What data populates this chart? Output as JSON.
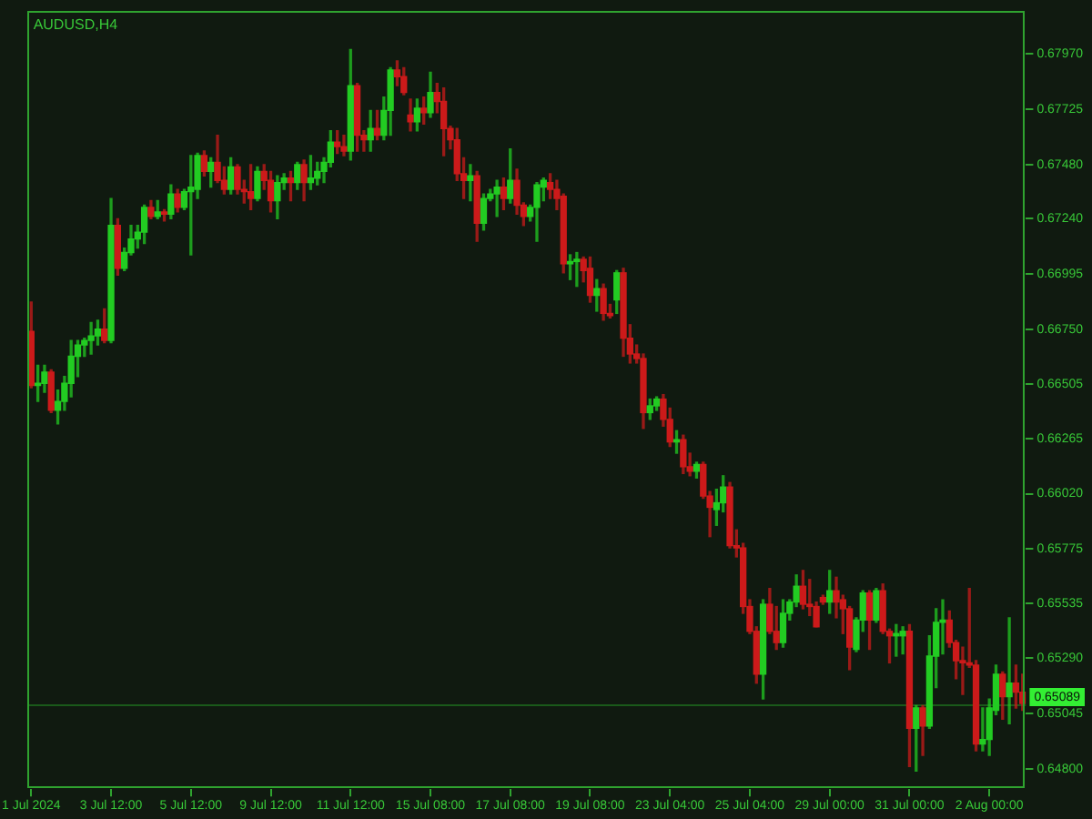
{
  "chart_data": {
    "type": "candlestick",
    "title": "AUDUSD,H4",
    "categories": [
      "1 Jul 2024",
      null,
      null,
      null,
      null,
      null,
      null,
      null,
      null,
      null,
      null,
      null,
      "3 Jul 12:00",
      null,
      null,
      null,
      null,
      null,
      null,
      null,
      null,
      null,
      null,
      null,
      "5 Jul 12:00",
      null,
      null,
      null,
      null,
      null,
      null,
      null,
      null,
      null,
      null,
      null,
      "9 Jul 12:00",
      null,
      null,
      null,
      null,
      null,
      null,
      null,
      null,
      null,
      null,
      null,
      "11 Jul 12:00",
      null,
      null,
      null,
      null,
      null,
      null,
      null,
      null,
      null,
      null,
      null,
      "15 Jul 08:00",
      null,
      null,
      null,
      null,
      null,
      null,
      null,
      null,
      null,
      null,
      null,
      "17 Jul 08:00",
      null,
      null,
      null,
      null,
      null,
      null,
      null,
      null,
      null,
      null,
      null,
      "19 Jul 08:00",
      null,
      null,
      null,
      null,
      null,
      null,
      null,
      null,
      null,
      null,
      null,
      "23 Jul 04:00",
      null,
      null,
      null,
      null,
      null,
      null,
      null,
      null,
      null,
      null,
      null,
      "25 Jul 04:00",
      null,
      null,
      null,
      null,
      null,
      null,
      null,
      null,
      null,
      null,
      null,
      "29 Jul 00:00",
      null,
      null,
      null,
      null,
      null,
      null,
      null,
      null,
      null,
      null,
      null,
      "31 Jul 00:00",
      null,
      null,
      null,
      null,
      null,
      null,
      null,
      null,
      null,
      null,
      null,
      "2 Aug 00:00",
      null,
      null,
      null,
      null,
      null
    ],
    "ohlc": [
      [
        0.6674,
        0.6687,
        0.6649,
        0.665
      ],
      [
        0.665,
        0.6659,
        0.6643,
        0.6651
      ],
      [
        0.6651,
        0.6659,
        0.6647,
        0.6656
      ],
      [
        0.6656,
        0.6657,
        0.6638,
        0.6639
      ],
      [
        0.6639,
        0.6648,
        0.6633,
        0.6643
      ],
      [
        0.6643,
        0.6654,
        0.6639,
        0.6651
      ],
      [
        0.6651,
        0.667,
        0.6645,
        0.6663
      ],
      [
        0.6663,
        0.667,
        0.6654,
        0.6668
      ],
      [
        0.6668,
        0.6671,
        0.6663,
        0.667
      ],
      [
        0.667,
        0.6678,
        0.6664,
        0.6672
      ],
      [
        0.6672,
        0.6679,
        0.6668,
        0.6675
      ],
      [
        0.6675,
        0.6684,
        0.6669,
        0.667
      ],
      [
        0.667,
        0.6733,
        0.6669,
        0.6721
      ],
      [
        0.6721,
        0.6724,
        0.6699,
        0.6702
      ],
      [
        0.6702,
        0.6711,
        0.6701,
        0.6709
      ],
      [
        0.6709,
        0.6721,
        0.6708,
        0.6715
      ],
      [
        0.6715,
        0.6721,
        0.6711,
        0.6718
      ],
      [
        0.6718,
        0.673,
        0.6713,
        0.6729
      ],
      [
        0.6729,
        0.6732,
        0.6724,
        0.6725
      ],
      [
        0.6725,
        0.6732,
        0.6724,
        0.6727
      ],
      [
        0.6727,
        0.6728,
        0.6723,
        0.6726
      ],
      [
        0.6726,
        0.6739,
        0.6724,
        0.6735
      ],
      [
        0.6735,
        0.6737,
        0.6727,
        0.6729
      ],
      [
        0.6729,
        0.6737,
        0.6728,
        0.6736
      ],
      [
        0.6736,
        0.6752,
        0.6708,
        0.6738
      ],
      [
        0.6737,
        0.6753,
        0.6733,
        0.6752
      ],
      [
        0.6752,
        0.6754,
        0.6743,
        0.6745
      ],
      [
        0.6745,
        0.6751,
        0.6738,
        0.6749
      ],
      [
        0.6749,
        0.6761,
        0.674,
        0.6741
      ],
      [
        0.6741,
        0.6747,
        0.6735,
        0.6737
      ],
      [
        0.6737,
        0.6751,
        0.6735,
        0.6747
      ],
      [
        0.6747,
        0.6748,
        0.6735,
        0.6737
      ],
      [
        0.6737,
        0.6741,
        0.6731,
        0.6736
      ],
      [
        0.6736,
        0.6748,
        0.6728,
        0.6733
      ],
      [
        0.6733,
        0.6747,
        0.6732,
        0.6745
      ],
      [
        0.6745,
        0.6748,
        0.6737,
        0.6741
      ],
      [
        0.6741,
        0.6745,
        0.6727,
        0.6732
      ],
      [
        0.6732,
        0.6743,
        0.6724,
        0.674
      ],
      [
        0.674,
        0.6744,
        0.6737,
        0.6742
      ],
      [
        0.6742,
        0.6745,
        0.6732,
        0.674
      ],
      [
        0.674,
        0.6749,
        0.6737,
        0.6748
      ],
      [
        0.6748,
        0.675,
        0.6732,
        0.674
      ],
      [
        0.674,
        0.6752,
        0.6737,
        0.6742
      ],
      [
        0.6742,
        0.6749,
        0.6739,
        0.6745
      ],
      [
        0.6745,
        0.6751,
        0.674,
        0.6749
      ],
      [
        0.6749,
        0.6763,
        0.6747,
        0.6758
      ],
      [
        0.6758,
        0.6763,
        0.6753,
        0.6756
      ],
      [
        0.6756,
        0.6761,
        0.6752,
        0.6754
      ],
      [
        0.6754,
        0.6799,
        0.675,
        0.6783
      ],
      [
        0.6783,
        0.6784,
        0.6754,
        0.6761
      ],
      [
        0.6761,
        0.6763,
        0.6754,
        0.6759
      ],
      [
        0.6759,
        0.6772,
        0.6754,
        0.6764
      ],
      [
        0.6764,
        0.6772,
        0.6759,
        0.6761
      ],
      [
        0.6761,
        0.6778,
        0.6759,
        0.6772
      ],
      [
        0.6772,
        0.6791,
        0.6761,
        0.679
      ],
      [
        0.679,
        0.6794,
        0.6783,
        0.6787
      ],
      [
        0.6787,
        0.6791,
        0.6779,
        0.678
      ],
      [
        0.677,
        0.6777,
        0.6763,
        0.6767
      ],
      [
        0.6767,
        0.6777,
        0.6763,
        0.6773
      ],
      [
        0.6773,
        0.6778,
        0.6766,
        0.6771
      ],
      [
        0.6771,
        0.6789,
        0.6769,
        0.678
      ],
      [
        0.678,
        0.6784,
        0.6771,
        0.6776
      ],
      [
        0.6776,
        0.6782,
        0.6752,
        0.6764
      ],
      [
        0.6764,
        0.6765,
        0.6755,
        0.6759
      ],
      [
        0.6759,
        0.6764,
        0.6741,
        0.6744
      ],
      [
        0.6744,
        0.6751,
        0.6733,
        0.6741
      ],
      [
        0.6741,
        0.6748,
        0.6732,
        0.6743
      ],
      [
        0.6743,
        0.6745,
        0.6714,
        0.6722
      ],
      [
        0.6722,
        0.6735,
        0.6719,
        0.6733
      ],
      [
        0.6733,
        0.6737,
        0.6732,
        0.6735
      ],
      [
        0.6735,
        0.6741,
        0.6725,
        0.6738
      ],
      [
        0.6738,
        0.6742,
        0.6728,
        0.6733
      ],
      [
        0.6733,
        0.6755,
        0.6731,
        0.6741
      ],
      [
        0.6741,
        0.6746,
        0.6726,
        0.673
      ],
      [
        0.673,
        0.6731,
        0.6721,
        0.6725
      ],
      [
        0.6725,
        0.673,
        0.6723,
        0.6729
      ],
      [
        0.6729,
        0.674,
        0.6714,
        0.6739
      ],
      [
        0.6738,
        0.6742,
        0.6732,
        0.6741
      ],
      [
        0.674,
        0.6744,
        0.6733,
        0.6737
      ],
      [
        0.6737,
        0.6741,
        0.6728,
        0.6733
      ],
      [
        0.6734,
        0.6735,
        0.67,
        0.6704
      ],
      [
        0.6704,
        0.6708,
        0.6697,
        0.6705
      ],
      [
        0.6705,
        0.6709,
        0.6694,
        0.6706
      ],
      [
        0.6706,
        0.6707,
        0.6696,
        0.6701
      ],
      [
        0.6702,
        0.6707,
        0.6687,
        0.669
      ],
      [
        0.669,
        0.6697,
        0.6683,
        0.6693
      ],
      [
        0.6693,
        0.6695,
        0.6679,
        0.6682
      ],
      [
        0.6682,
        0.6686,
        0.668,
        0.6681
      ],
      [
        0.6688,
        0.6701,
        0.6682,
        0.67
      ],
      [
        0.67,
        0.6702,
        0.6663,
        0.6671
      ],
      [
        0.6671,
        0.6677,
        0.666,
        0.6664
      ],
      [
        0.6664,
        0.6668,
        0.666,
        0.6662
      ],
      [
        0.6662,
        0.6664,
        0.6631,
        0.6638
      ],
      [
        0.6638,
        0.6644,
        0.6635,
        0.6641
      ],
      [
        0.6641,
        0.6645,
        0.6639,
        0.6644
      ],
      [
        0.6644,
        0.6646,
        0.6632,
        0.6635
      ],
      [
        0.6635,
        0.664,
        0.6623,
        0.6625
      ],
      [
        0.6625,
        0.663,
        0.662,
        0.6626
      ],
      [
        0.6626,
        0.6628,
        0.6611,
        0.6614
      ],
      [
        0.6614,
        0.662,
        0.661,
        0.6612
      ],
      [
        0.6612,
        0.6616,
        0.6609,
        0.6615
      ],
      [
        0.6615,
        0.6616,
        0.66,
        0.6601
      ],
      [
        0.6601,
        0.6603,
        0.6583,
        0.6596
      ],
      [
        0.6595,
        0.6604,
        0.6588,
        0.6598
      ],
      [
        0.6598,
        0.661,
        0.6594,
        0.6605
      ],
      [
        0.6605,
        0.6607,
        0.6578,
        0.6579
      ],
      [
        0.6579,
        0.6586,
        0.6574,
        0.6578
      ],
      [
        0.6578,
        0.658,
        0.6549,
        0.6552
      ],
      [
        0.6552,
        0.6555,
        0.654,
        0.6541
      ],
      [
        0.6541,
        0.6543,
        0.6518,
        0.6522
      ],
      [
        0.6522,
        0.6555,
        0.6511,
        0.6553
      ],
      [
        0.6553,
        0.656,
        0.654,
        0.6541
      ],
      [
        0.6541,
        0.6552,
        0.6533,
        0.6536
      ],
      [
        0.6536,
        0.6555,
        0.6534,
        0.6549
      ],
      [
        0.6549,
        0.6555,
        0.6546,
        0.6554
      ],
      [
        0.6554,
        0.6566,
        0.6552,
        0.6561
      ],
      [
        0.6561,
        0.6568,
        0.6551,
        0.6553
      ],
      [
        0.6553,
        0.6564,
        0.6548,
        0.6552
      ],
      [
        0.6552,
        0.6554,
        0.6543,
        0.6543
      ],
      [
        0.6556,
        0.6557,
        0.6553,
        0.6554
      ],
      [
        0.6554,
        0.6568,
        0.6549,
        0.6559
      ],
      [
        0.6559,
        0.6565,
        0.6547,
        0.6554
      ],
      [
        0.6555,
        0.6557,
        0.654,
        0.6551
      ],
      [
        0.6551,
        0.6552,
        0.6524,
        0.6534
      ],
      [
        0.6533,
        0.6547,
        0.6532,
        0.6546
      ],
      [
        0.6546,
        0.6559,
        0.6541,
        0.6558
      ],
      [
        0.6558,
        0.6559,
        0.6533,
        0.6546
      ],
      [
        0.6546,
        0.656,
        0.6545,
        0.6559
      ],
      [
        0.6559,
        0.6562,
        0.654,
        0.6541
      ],
      [
        0.6541,
        0.6542,
        0.6527,
        0.6539
      ],
      [
        0.6539,
        0.6544,
        0.653,
        0.654
      ],
      [
        0.6539,
        0.6543,
        0.6531,
        0.6541
      ],
      [
        0.6541,
        0.6544,
        0.6481,
        0.6498
      ],
      [
        0.6498,
        0.6508,
        0.6479,
        0.6507
      ],
      [
        0.6507,
        0.6508,
        0.6486,
        0.6499
      ],
      [
        0.6499,
        0.6539,
        0.6498,
        0.653
      ],
      [
        0.653,
        0.6551,
        0.6516,
        0.6545
      ],
      [
        0.6545,
        0.6555,
        0.6531,
        0.6546
      ],
      [
        0.6546,
        0.655,
        0.6534,
        0.6536
      ],
      [
        0.6536,
        0.6537,
        0.652,
        0.6528
      ],
      [
        0.6528,
        0.6534,
        0.6513,
        0.6527
      ],
      [
        0.6527,
        0.656,
        0.6525,
        0.6526
      ],
      [
        0.6526,
        0.6528,
        0.6488,
        0.6491
      ],
      [
        0.6491,
        0.6507,
        0.6488,
        0.6493
      ],
      [
        0.6493,
        0.6511,
        0.6486,
        0.6507
      ],
      [
        0.6506,
        0.6526,
        0.6504,
        0.6522
      ],
      [
        0.6522,
        0.6523,
        0.6502,
        0.6512
      ],
      [
        0.6512,
        0.6547,
        0.65,
        0.6518
      ],
      [
        0.6518,
        0.6526,
        0.6507,
        0.6514
      ],
      [
        0.6514,
        0.6522,
        0.6506,
        0.6509
      ]
    ],
    "colors": [
      "#cc1a1a",
      "#22cc22",
      "#22cc22",
      "#cc1a1a",
      "#22cc22",
      "#22cc22",
      "#22cc22",
      "#22cc22",
      "#22cc22",
      "#22cc22",
      "#22cc22",
      "#cc1a1a",
      "#22cc22",
      "#cc1a1a",
      "#22cc22",
      "#22cc22",
      "#22cc22",
      "#22cc22",
      "#cc1a1a",
      "#22cc22",
      "#cc1a1a",
      "#22cc22",
      "#cc1a1a",
      "#22cc22",
      "#22cc22",
      "#22cc22",
      "#cc1a1a",
      "#22cc22",
      "#cc1a1a",
      "#cc1a1a",
      "#22cc22",
      "#cc1a1a",
      "#cc1a1a",
      "#cc1a1a",
      "#22cc22",
      "#cc1a1a",
      "#cc1a1a",
      "#22cc22",
      "#22cc22",
      "#cc1a1a",
      "#22cc22",
      "#cc1a1a",
      "#22cc22",
      "#22cc22",
      "#22cc22",
      "#22cc22",
      "#cc1a1a",
      "#cc1a1a",
      "#22cc22",
      "#cc1a1a",
      "#cc1a1a",
      "#22cc22",
      "#cc1a1a",
      "#22cc22",
      "#22cc22",
      "#cc1a1a",
      "#cc1a1a",
      "#cc1a1a",
      "#22cc22",
      "#cc1a1a",
      "#22cc22",
      "#cc1a1a",
      "#cc1a1a",
      "#cc1a1a",
      "#cc1a1a",
      "#cc1a1a",
      "#22cc22",
      "#cc1a1a",
      "#22cc22",
      "#22cc22",
      "#22cc22",
      "#cc1a1a",
      "#22cc22",
      "#cc1a1a",
      "#cc1a1a",
      "#22cc22",
      "#22cc22",
      "#22cc22",
      "#cc1a1a",
      "#cc1a1a",
      "#cc1a1a",
      "#22cc22",
      "#22cc22",
      "#cc1a1a",
      "#cc1a1a",
      "#22cc22",
      "#cc1a1a",
      "#cc1a1a",
      "#22cc22",
      "#cc1a1a",
      "#cc1a1a",
      "#cc1a1a",
      "#cc1a1a",
      "#22cc22",
      "#22cc22",
      "#cc1a1a",
      "#cc1a1a",
      "#22cc22",
      "#cc1a1a",
      "#cc1a1a",
      "#22cc22",
      "#cc1a1a",
      "#cc1a1a",
      "#22cc22",
      "#22cc22",
      "#cc1a1a",
      "#cc1a1a",
      "#cc1a1a",
      "#cc1a1a",
      "#cc1a1a",
      "#22cc22",
      "#cc1a1a",
      "#cc1a1a",
      "#22cc22",
      "#22cc22",
      "#22cc22",
      "#cc1a1a",
      "#cc1a1a",
      "#cc1a1a",
      "#cc1a1a",
      "#22cc22",
      "#cc1a1a",
      "#cc1a1a",
      "#cc1a1a",
      "#22cc22",
      "#22cc22",
      "#cc1a1a",
      "#22cc22",
      "#cc1a1a",
      "#cc1a1a",
      "#22cc22",
      "#22cc22",
      "#cc1a1a",
      "#22cc22",
      "#cc1a1a",
      "#22cc22",
      "#22cc22",
      "#22cc22",
      "#cc1a1a",
      "#cc1a1a",
      "#cc1a1a",
      "#cc1a1a",
      "#cc1a1a",
      "#22cc22",
      "#22cc22",
      "#22cc22",
      "#cc1a1a",
      "#22cc22",
      "#cc1a1a",
      "#cc1a1a"
    ],
    "ylim": [
      0.6471,
      0.6816
    ],
    "yticks": [
      {
        "value": 0.6797,
        "label": "0.67970"
      },
      0.67725,
      {
        "value": 0.6748,
        "label": "0.67480"
      },
      {
        "value": 0.6724,
        "label": "0.67240"
      },
      0.66995,
      {
        "value": 0.6675,
        "label": "0.66750"
      },
      0.66505,
      0.66265,
      {
        "value": 0.6602,
        "label": "0.66020"
      },
      0.65775,
      0.65535,
      {
        "value": 0.6529,
        "label": "0.65290"
      },
      0.65045,
      {
        "value": 0.648,
        "label": "0.64800"
      }
    ],
    "ref_lines": [
      {
        "axis": "y",
        "value": 0.65089,
        "label": "0.65089",
        "color": "#33ee33"
      }
    ]
  }
}
